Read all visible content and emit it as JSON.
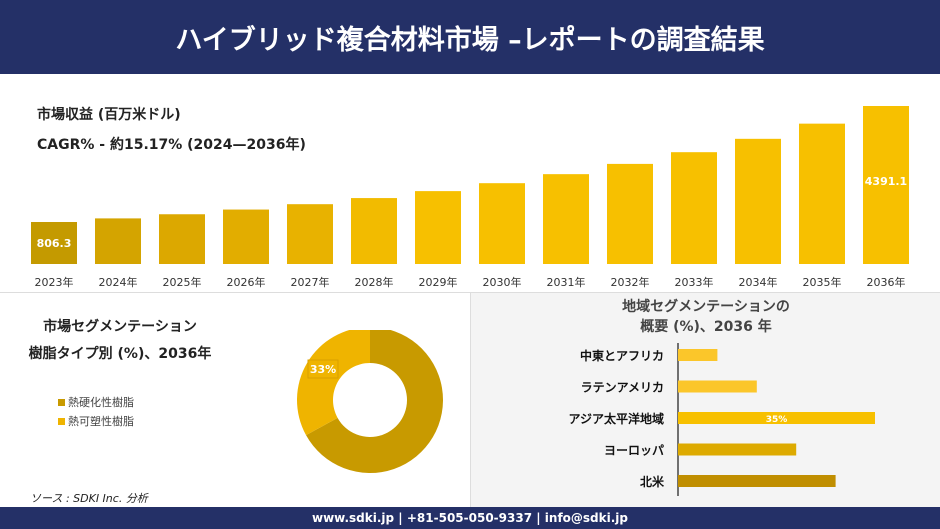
{
  "header": {
    "title": "ハイブリッド複合材料市場 –レポートの調査結果"
  },
  "colors": {
    "navy": "#243067",
    "gold_dark": "#c49500",
    "gold": "#f7c000",
    "gold_light": "#fbc62a"
  },
  "chart_data": [
    {
      "type": "bar",
      "title": "市場収益 (百万米ドル)",
      "subtitle": "CAGR% - 約15.17% (2024—2036年)",
      "categories": [
        "2023年",
        "2024年",
        "2025年",
        "2026年",
        "2027年",
        "2028年",
        "2029年",
        "2030年",
        "2031年",
        "2032年",
        "2033年",
        "2034年",
        "2035年",
        "2036年"
      ],
      "values": [
        806.3,
        918,
        1046,
        1191,
        1357,
        1546,
        1761,
        2006,
        2285,
        2602,
        2964,
        3377,
        3846,
        4391.1
      ],
      "data_labels": {
        "0": "806.3",
        "13": "4391.1"
      },
      "grid": false
    },
    {
      "type": "pie",
      "donut": true,
      "title": "市場セグメンテーション",
      "subtitle": "樹脂タイプ別 (%)、2036年",
      "categories": [
        "熱硬化性樹脂",
        "熱可塑性樹脂"
      ],
      "values": [
        67,
        33
      ],
      "data_labels": {
        "1": "33%"
      },
      "colors": [
        "#c89a00",
        "#efb400"
      ],
      "legend": "left"
    },
    {
      "type": "bar",
      "orientation": "horizontal",
      "title": "地域セグメンテーションの",
      "subtitle": "概要 (%)、2036 年",
      "categories": [
        "中東とアフリカ",
        "ラテンアメリカ",
        "アジア太平洋地域",
        "ヨーロッパ",
        "北米"
      ],
      "values": [
        7,
        14,
        35,
        21,
        28
      ],
      "data_labels": {
        "2": "35%"
      },
      "colors": [
        "#fbc62a",
        "#fbc62a",
        "#f7c000",
        "#ddaa00",
        "#c08e00"
      ]
    }
  ],
  "source": "ソース : SDKI Inc. 分析",
  "footer": "www.sdki.jp | +81-505-050-9337 | info@sdki.jp"
}
